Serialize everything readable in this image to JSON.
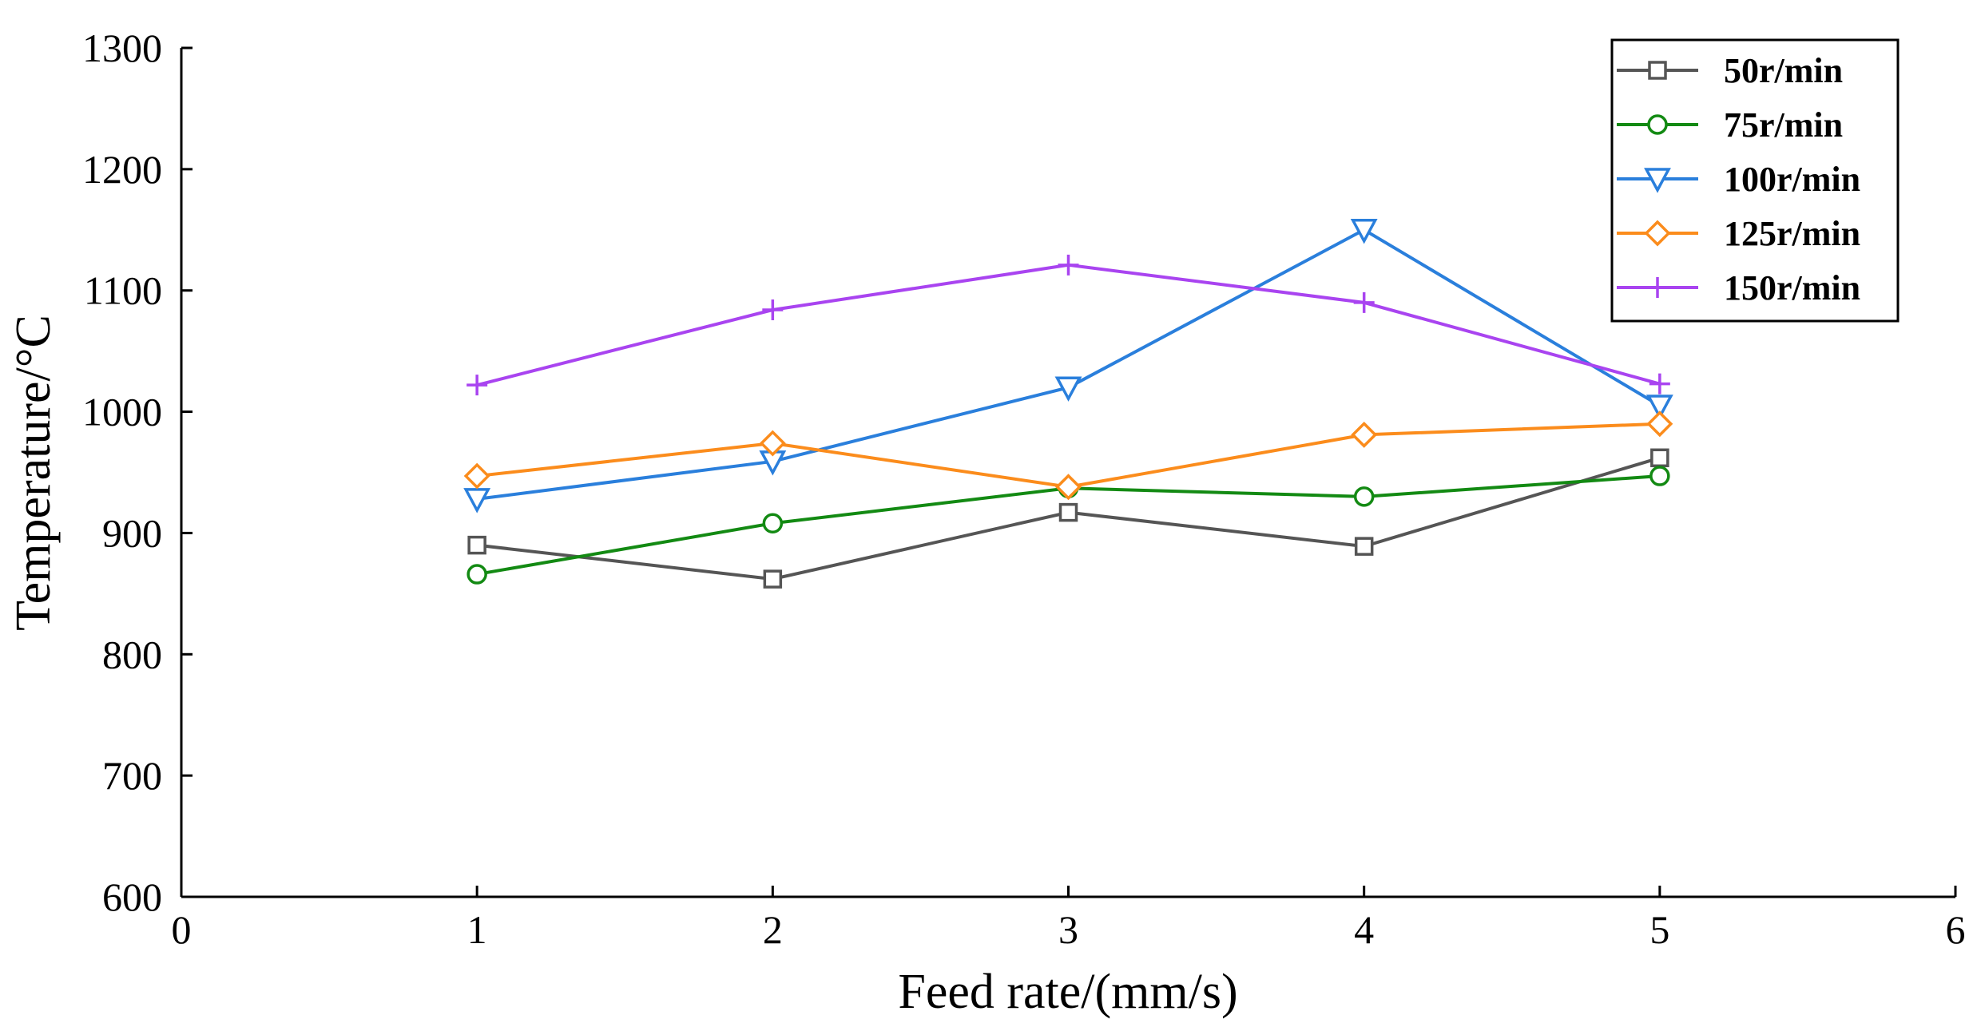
{
  "chart_data": {
    "type": "line",
    "title": "",
    "xlabel": "Feed rate/(mm/s)",
    "ylabel": "Temperature/°C",
    "xlim": [
      0,
      6
    ],
    "ylim": [
      600,
      1300
    ],
    "x_ticks": [
      0,
      1,
      2,
      3,
      4,
      5,
      6
    ],
    "y_ticks": [
      600,
      700,
      800,
      900,
      1000,
      1100,
      1200,
      1300
    ],
    "grid": false,
    "legend_position": "top-right",
    "x": [
      1,
      2,
      3,
      4,
      5
    ],
    "series": [
      {
        "name": "50r/min",
        "color": "#555555",
        "marker": "square",
        "values": [
          890,
          862,
          917,
          889,
          962
        ]
      },
      {
        "name": "75r/min",
        "color": "#138a13",
        "marker": "circle",
        "values": [
          866,
          908,
          937,
          930,
          947
        ]
      },
      {
        "name": "100r/min",
        "color": "#2a7fdc",
        "marker": "triangle-down",
        "values": [
          928,
          959,
          1020,
          1150,
          1005
        ]
      },
      {
        "name": "125r/min",
        "color": "#fb8c1c",
        "marker": "diamond",
        "values": [
          947,
          974,
          938,
          981,
          990
        ]
      },
      {
        "name": "150r/min",
        "color": "#a944f0",
        "marker": "plus",
        "values": [
          1022,
          1084,
          1121,
          1090,
          1023
        ]
      }
    ]
  }
}
